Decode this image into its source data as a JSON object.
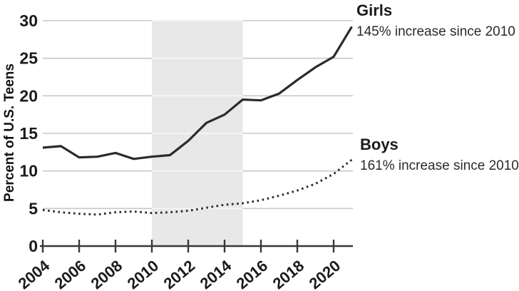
{
  "figure": {
    "y_axis_title": "Percent of U.S. Teens",
    "annotations": {
      "girls_label": "Girls",
      "girls_note": "145% increase since 2010",
      "boys_label": "Boys",
      "boys_note": "161% increase since 2010"
    }
  },
  "chart_data": {
    "type": "line",
    "title": "",
    "xlabel": "",
    "ylabel": "Percent of U.S. Teens",
    "x": [
      2004,
      2005,
      2006,
      2007,
      2008,
      2009,
      2010,
      2011,
      2012,
      2013,
      2014,
      2015,
      2016,
      2017,
      2018,
      2019,
      2020,
      2021
    ],
    "series": [
      {
        "name": "Girls",
        "style": "solid",
        "note": "145% increase since 2010",
        "values": [
          13.1,
          13.3,
          11.8,
          11.9,
          12.4,
          11.6,
          11.9,
          12.1,
          14.0,
          16.4,
          17.5,
          19.5,
          19.4,
          20.3,
          22.1,
          23.8,
          25.2,
          29.2
        ]
      },
      {
        "name": "Boys",
        "style": "dotted",
        "note": "161% increase since 2010",
        "values": [
          4.8,
          4.5,
          4.3,
          4.2,
          4.5,
          4.6,
          4.4,
          4.5,
          4.7,
          5.1,
          5.5,
          5.7,
          6.1,
          6.7,
          7.4,
          8.3,
          9.6,
          11.5
        ]
      }
    ],
    "xticks": [
      2004,
      2006,
      2008,
      2010,
      2012,
      2014,
      2016,
      2018,
      2020
    ],
    "yticks": [
      0,
      5,
      10,
      15,
      20,
      25,
      30
    ],
    "xlim": [
      2004,
      2021
    ],
    "ylim": [
      0,
      30
    ],
    "grid": "horizontal",
    "legend_position": "right-annotations",
    "shaded_region": {
      "x_start": 2010,
      "x_end": 2015,
      "color": "#e8e8e8"
    },
    "colors": {
      "line": "#2b2b2b",
      "gridline": "#c8c8c8",
      "gridline_on_band": "#f7f7f7",
      "axis": "#383838",
      "text": "#1a1a1a"
    }
  }
}
